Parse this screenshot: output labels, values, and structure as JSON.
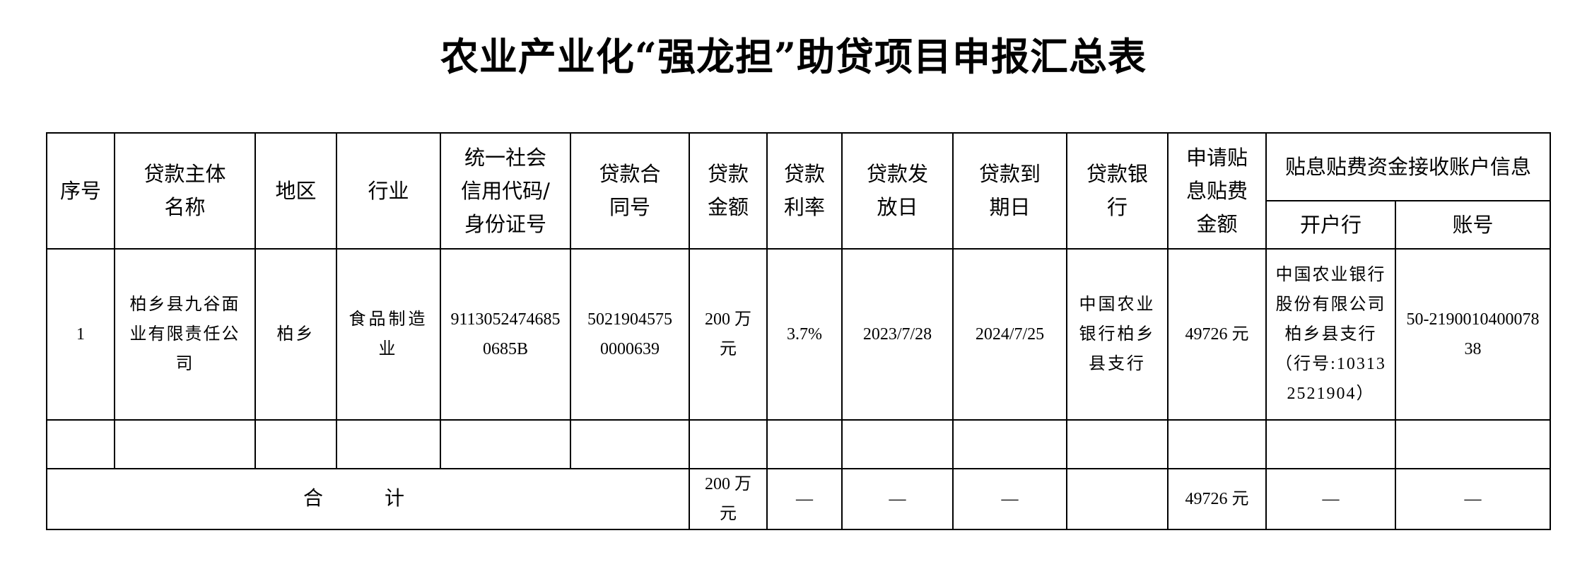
{
  "title": "农业产业化“强龙担”助贷项目申报汇总表",
  "headers": {
    "seq": "序号",
    "borrower": "贷款主体名称",
    "region": "地区",
    "industry": "行业",
    "credit_code": "统一社会信用代码/身份证号",
    "contract_no": "贷款合同号",
    "amount": "贷款金额",
    "rate": "贷款利率",
    "issue_date": "贷款发放日",
    "due_date": "贷款到期日",
    "bank": "贷款银行",
    "subsidy": "申请贴息贴费金额",
    "account_info": "贴息贴费资金接收账户信息",
    "open_bank": "开户行",
    "account_no": "账号"
  },
  "rows": [
    {
      "seq": "1",
      "borrower": "柏乡县九谷面业有限责任公司",
      "region": "柏乡",
      "industry": "食品制造业",
      "credit_code": "91130524746850685B",
      "contract_no": "50219045750000639",
      "amount": "200 万元",
      "rate": "3.7%",
      "issue_date": "2023/7/28",
      "due_date": "2024/7/25",
      "bank": "中国农业银行柏乡县支行",
      "subsidy": "49726 元",
      "open_bank": "中国农业银行股份有限公司柏乡县支行（行号:103132521904）",
      "account_no": "50-219001040007838"
    }
  ],
  "total": {
    "label": "合 计",
    "amount": "200 万元",
    "rate": "—",
    "issue_date": "—",
    "due_date": "—",
    "bank": "",
    "subsidy": "49726 元",
    "open_bank": "—",
    "account_no": "—"
  }
}
